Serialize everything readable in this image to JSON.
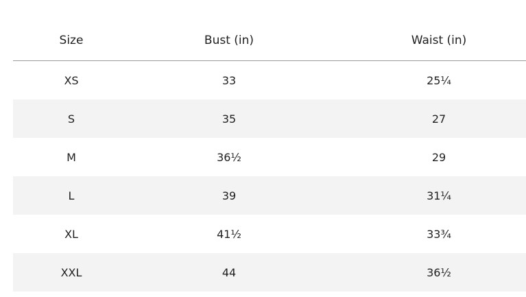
{
  "table": {
    "header": [
      "Size",
      "Bust (in)",
      "Waist (in)"
    ],
    "rows": [
      [
        "XS",
        "33",
        "25¼"
      ],
      [
        "S",
        "35",
        "27"
      ],
      [
        "M",
        "36½",
        "29"
      ],
      [
        "L",
        "39",
        "31¼"
      ],
      [
        "XL",
        "41½",
        "33¾"
      ],
      [
        "XXL",
        "44",
        "36½"
      ]
    ]
  }
}
